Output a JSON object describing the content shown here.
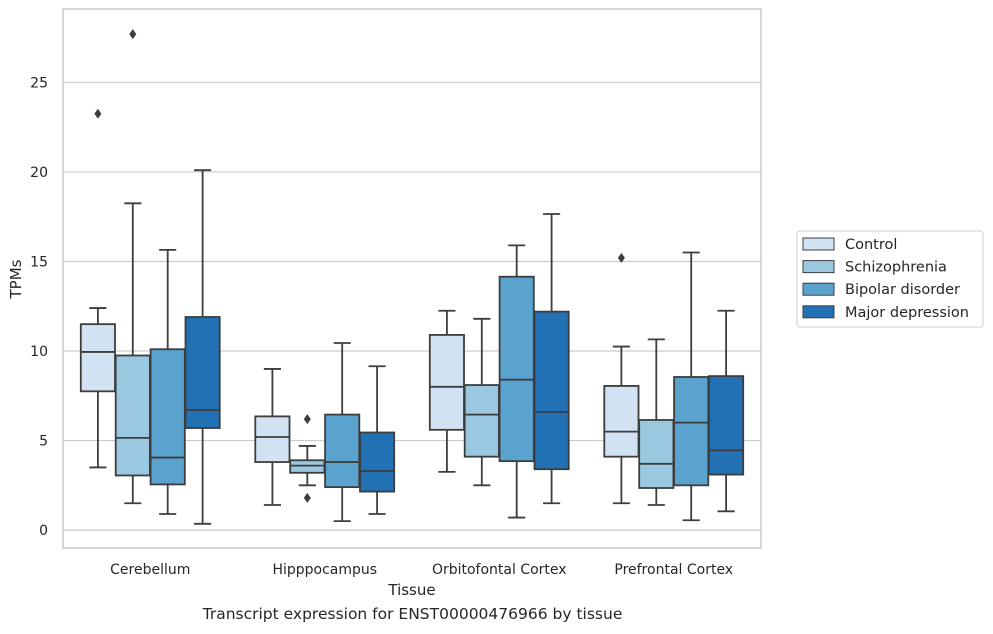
{
  "caption": "Transcript expression for ENST00000476966 by tissue",
  "chart_data": {
    "type": "box",
    "xlabel": "Tissue",
    "ylabel": "TPMs",
    "ylim": [
      -1,
      29.1
    ],
    "yticks": [
      0,
      5,
      10,
      15,
      20,
      25
    ],
    "grid": "horizontal",
    "legend_position": "right",
    "categories": [
      "Cerebellum",
      "Hipppocampus",
      "Orbitofontal Cortex",
      "Prefrontal Cortex"
    ],
    "series": [
      {
        "name": "Control",
        "color": "#d1e2f2",
        "boxes": [
          {
            "whisker_low": 3.5,
            "q1": 7.75,
            "median": 9.95,
            "q3": 11.5,
            "whisker_high": 12.4,
            "outliers": [
              23.25
            ]
          },
          {
            "whisker_low": 1.4,
            "q1": 3.8,
            "median": 5.2,
            "q3": 6.35,
            "whisker_high": 9.0,
            "outliers": []
          },
          {
            "whisker_low": 3.25,
            "q1": 5.6,
            "median": 8.0,
            "q3": 10.9,
            "whisker_high": 12.25,
            "outliers": []
          },
          {
            "whisker_low": 1.5,
            "q1": 4.1,
            "median": 5.5,
            "q3": 8.05,
            "whisker_high": 10.25,
            "outliers": [
              15.2
            ]
          }
        ]
      },
      {
        "name": "Schizophrenia",
        "color": "#9ac8e0",
        "boxes": [
          {
            "whisker_low": 1.5,
            "q1": 3.05,
            "median": 5.15,
            "q3": 9.75,
            "whisker_high": 18.25,
            "outliers": [
              27.7
            ]
          },
          {
            "whisker_low": 2.5,
            "q1": 3.2,
            "median": 3.6,
            "q3": 3.9,
            "whisker_high": 4.7,
            "outliers": [
              6.2,
              1.8
            ]
          },
          {
            "whisker_low": 2.5,
            "q1": 4.1,
            "median": 6.45,
            "q3": 8.1,
            "whisker_high": 11.8,
            "outliers": []
          },
          {
            "whisker_low": 1.4,
            "q1": 2.35,
            "median": 3.7,
            "q3": 6.15,
            "whisker_high": 10.65,
            "outliers": []
          }
        ]
      },
      {
        "name": "Bipolar disorder",
        "color": "#5ba3cf",
        "boxes": [
          {
            "whisker_low": 0.9,
            "q1": 2.55,
            "median": 4.05,
            "q3": 10.1,
            "whisker_high": 15.65,
            "outliers": []
          },
          {
            "whisker_low": 0.5,
            "q1": 2.4,
            "median": 3.8,
            "q3": 6.45,
            "whisker_high": 10.45,
            "outliers": []
          },
          {
            "whisker_low": 0.7,
            "q1": 3.85,
            "median": 8.4,
            "q3": 14.15,
            "whisker_high": 15.9,
            "outliers": []
          },
          {
            "whisker_low": 0.55,
            "q1": 2.5,
            "median": 6.0,
            "q3": 8.55,
            "whisker_high": 15.5,
            "outliers": []
          }
        ]
      },
      {
        "name": "Major depression",
        "color": "#2271b5",
        "boxes": [
          {
            "whisker_low": 0.35,
            "q1": 5.7,
            "median": 6.7,
            "q3": 11.9,
            "whisker_high": 20.1,
            "outliers": []
          },
          {
            "whisker_low": 0.9,
            "q1": 2.15,
            "median": 3.3,
            "q3": 5.45,
            "whisker_high": 9.15,
            "outliers": []
          },
          {
            "whisker_low": 1.5,
            "q1": 3.4,
            "median": 6.6,
            "q3": 12.2,
            "whisker_high": 17.65,
            "outliers": []
          },
          {
            "whisker_low": 1.05,
            "q1": 3.1,
            "median": 4.45,
            "q3": 8.6,
            "whisker_high": 12.25,
            "outliers": []
          }
        ]
      }
    ]
  }
}
